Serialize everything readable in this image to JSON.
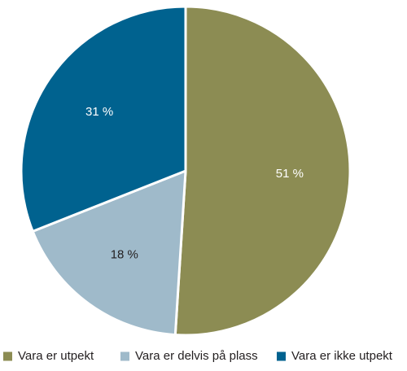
{
  "chart_data": {
    "type": "pie",
    "title": "",
    "slices": [
      {
        "label": "Vara er utpekt",
        "value": 51,
        "display": "51 %",
        "color": "#8c8c53",
        "label_color": "#ffffff"
      },
      {
        "label": "Vara er delvis på plass",
        "value": 18,
        "display": "18 %",
        "color": "#9fbaca",
        "label_color": "#231f20"
      },
      {
        "label": "Vara er ikke utpekt",
        "value": 31,
        "display": "31 %",
        "color": "#00628f",
        "label_color": "#ffffff"
      }
    ],
    "start_angle_deg": 0,
    "direction": "clockwise",
    "legend_position": "bottom"
  }
}
